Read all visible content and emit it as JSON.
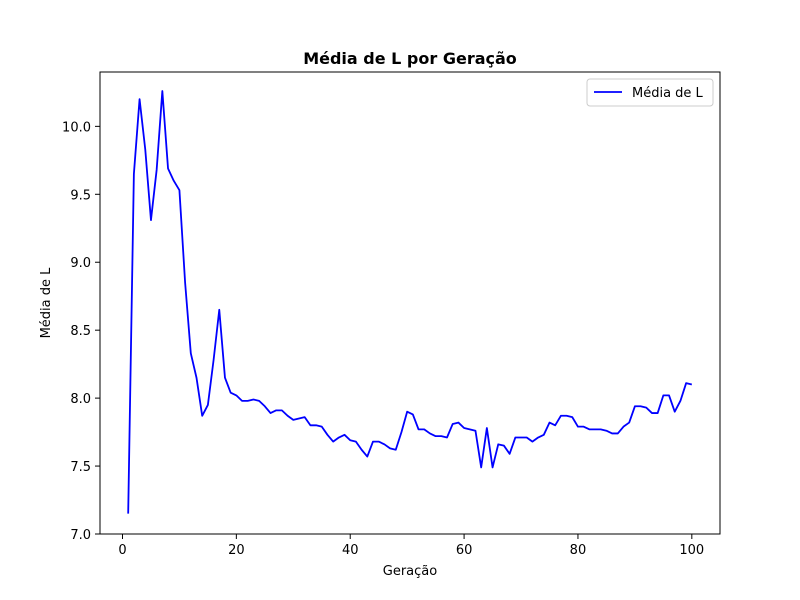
{
  "chart_data": {
    "type": "line",
    "title": "Média de L por Geração",
    "xlabel": "Geração",
    "ylabel": "Média de L",
    "xlim": [
      -3.95,
      104.95
    ],
    "ylim": [
      7.0,
      10.4
    ],
    "xticks": [
      0,
      20,
      40,
      60,
      80,
      100
    ],
    "yticks": [
      7.0,
      7.5,
      8.0,
      8.5,
      9.0,
      9.5,
      10.0
    ],
    "grid": false,
    "legend_placement": "top-right",
    "series": [
      {
        "name": "Média de L",
        "color": "#0000ff",
        "x": [
          1,
          2,
          3,
          4,
          5,
          6,
          7,
          8,
          9,
          10,
          11,
          12,
          13,
          14,
          15,
          16,
          17,
          18,
          19,
          20,
          21,
          22,
          23,
          24,
          25,
          26,
          27,
          28,
          29,
          30,
          31,
          32,
          33,
          34,
          35,
          36,
          37,
          38,
          39,
          40,
          41,
          42,
          43,
          44,
          45,
          46,
          47,
          48,
          49,
          50,
          51,
          52,
          53,
          54,
          55,
          56,
          57,
          58,
          59,
          60,
          61,
          62,
          63,
          64,
          65,
          66,
          67,
          68,
          69,
          70,
          71,
          72,
          73,
          74,
          75,
          76,
          77,
          78,
          79,
          80,
          81,
          82,
          83,
          84,
          85,
          86,
          87,
          88,
          89,
          90,
          91,
          92,
          93,
          94,
          95,
          96,
          97,
          98,
          99,
          100
        ],
        "y": [
          7.15,
          9.65,
          10.2,
          9.83,
          9.31,
          9.68,
          10.26,
          9.69,
          9.6,
          9.53,
          8.85,
          8.33,
          8.15,
          7.87,
          7.95,
          8.28,
          8.65,
          8.15,
          8.04,
          8.02,
          7.98,
          7.98,
          7.99,
          7.98,
          7.94,
          7.89,
          7.91,
          7.91,
          7.87,
          7.84,
          7.85,
          7.86,
          7.8,
          7.8,
          7.79,
          7.73,
          7.68,
          7.71,
          7.73,
          7.69,
          7.68,
          7.62,
          7.57,
          7.68,
          7.68,
          7.66,
          7.63,
          7.62,
          7.75,
          7.9,
          7.88,
          7.77,
          7.77,
          7.74,
          7.72,
          7.72,
          7.71,
          7.81,
          7.82,
          7.78,
          7.77,
          7.76,
          7.49,
          7.78,
          7.49,
          7.66,
          7.65,
          7.59,
          7.71,
          7.71,
          7.71,
          7.68,
          7.71,
          7.73,
          7.82,
          7.8,
          7.87,
          7.87,
          7.86,
          7.79,
          7.79,
          7.77,
          7.77,
          7.77,
          7.76,
          7.74,
          7.74,
          7.79,
          7.82,
          7.94,
          7.94,
          7.93,
          7.89,
          7.89,
          8.02,
          8.02,
          7.9,
          7.98,
          8.11,
          8.1
        ]
      }
    ]
  }
}
